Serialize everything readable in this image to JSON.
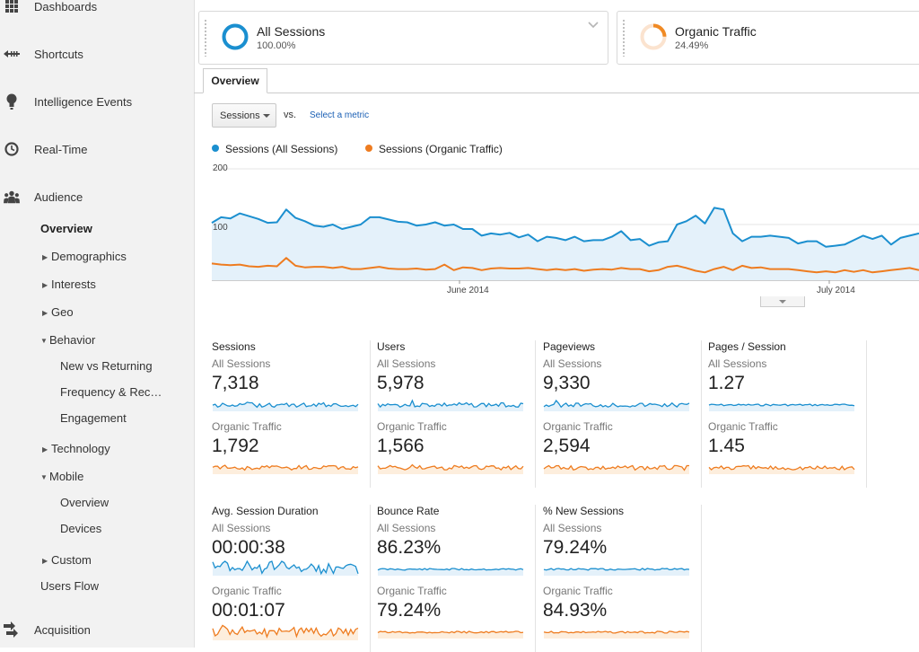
{
  "sidebar": {
    "top_items": [
      {
        "label": "Dashboards",
        "icon": "grid-icon"
      },
      {
        "label": "Shortcuts",
        "icon": "shortcut-arrow-icon"
      },
      {
        "label": "Intelligence Events",
        "icon": "lightbulb-icon"
      },
      {
        "label": "Real-Time",
        "icon": "clock-icon"
      },
      {
        "label": "Audience",
        "icon": "people-icon"
      },
      {
        "label": "Acquisition",
        "icon": "acquisition-arrows-icon"
      }
    ],
    "audience_items": {
      "overview": "Overview",
      "demographics": "Demographics",
      "interests": "Interests",
      "geo": "Geo",
      "behavior": "Behavior",
      "new_vs_returning": "New vs Returning",
      "frequency": "Frequency & Rec…",
      "engagement": "Engagement",
      "technology": "Technology",
      "mobile": "Mobile",
      "mobile_overview": "Overview",
      "devices": "Devices",
      "custom": "Custom",
      "users_flow": "Users Flow"
    }
  },
  "segments": [
    {
      "name": "All Sessions",
      "percent": "100.00%",
      "fraction": 1.0,
      "color": "#1a8fd0"
    },
    {
      "name": "Organic Traffic",
      "percent": "24.49%",
      "fraction": 0.2449,
      "color": "#f08a24"
    }
  ],
  "tabs": {
    "overview": "Overview"
  },
  "metric_selector": {
    "value": "Sessions",
    "vs": "vs.",
    "select_metric": "Select a metric"
  },
  "colors": {
    "all_sessions": "#1b8fcf",
    "organic": "#ee7c20"
  },
  "chart_data": {
    "type": "line",
    "legend": [
      "Sessions (All Sessions)",
      "Sessions (Organic Traffic)"
    ],
    "y_ticks": [
      "200",
      "100"
    ],
    "x_ticks": [
      "June 2014",
      "July 2014"
    ],
    "ylim": [
      0,
      200
    ],
    "series": [
      {
        "name": "Sessions (All Sessions)",
        "values": [
          103,
          113,
          111,
          120,
          115,
          110,
          103,
          104,
          127,
          112,
          106,
          98,
          96,
          100,
          92,
          96,
          100,
          113,
          113,
          109,
          105,
          104,
          98,
          100,
          104,
          98,
          100,
          92,
          92,
          80,
          84,
          82,
          85,
          77,
          82,
          70,
          78,
          76,
          72,
          78,
          70,
          72,
          72,
          78,
          88,
          72,
          74,
          62,
          68,
          70,
          100,
          106,
          116,
          102,
          130,
          127,
          84,
          70,
          78,
          78,
          80,
          78,
          76,
          66,
          70,
          70,
          60,
          62,
          64,
          72,
          80,
          74,
          80,
          64,
          76,
          80,
          84
        ]
      },
      {
        "name": "Sessions (Organic Traffic)",
        "values": [
          30,
          28,
          27,
          28,
          25,
          24,
          26,
          25,
          40,
          26,
          23,
          24,
          24,
          22,
          24,
          20,
          20,
          22,
          24,
          21,
          20,
          20,
          21,
          19,
          20,
          28,
          18,
          23,
          22,
          18,
          21,
          22,
          21,
          21,
          22,
          20,
          18,
          20,
          18,
          20,
          17,
          19,
          20,
          19,
          22,
          20,
          20,
          16,
          18,
          24,
          26,
          22,
          17,
          14,
          20,
          24,
          18,
          26,
          22,
          23,
          20,
          20,
          20,
          18,
          16,
          14,
          16,
          14,
          18,
          15,
          18,
          14,
          16,
          18,
          20,
          22,
          18
        ]
      }
    ]
  },
  "scorecards": [
    {
      "title": "Sessions",
      "all_label": "All Sessions",
      "all_value": "7,318",
      "org_label": "Organic Traffic",
      "org_value": "1,792"
    },
    {
      "title": "Users",
      "all_label": "All Sessions",
      "all_value": "5,978",
      "org_label": "Organic Traffic",
      "org_value": "1,566"
    },
    {
      "title": "Pageviews",
      "all_label": "All Sessions",
      "all_value": "9,330",
      "org_label": "Organic Traffic",
      "org_value": "2,594"
    },
    {
      "title": "Pages / Session",
      "all_label": "All Sessions",
      "all_value": "1.27",
      "org_label": "Organic Traffic",
      "org_value": "1.45"
    },
    {
      "title": "Avg. Session Duration",
      "all_label": "All Sessions",
      "all_value": "00:00:38",
      "org_label": "Organic Traffic",
      "org_value": "00:01:07"
    },
    {
      "title": "Bounce Rate",
      "all_label": "All Sessions",
      "all_value": "86.23%",
      "org_label": "Organic Traffic",
      "org_value": "79.24%"
    },
    {
      "title": "% New Sessions",
      "all_label": "All Sessions",
      "all_value": "79.24%",
      "org_label": "Organic Traffic",
      "org_value": "84.93%"
    }
  ]
}
